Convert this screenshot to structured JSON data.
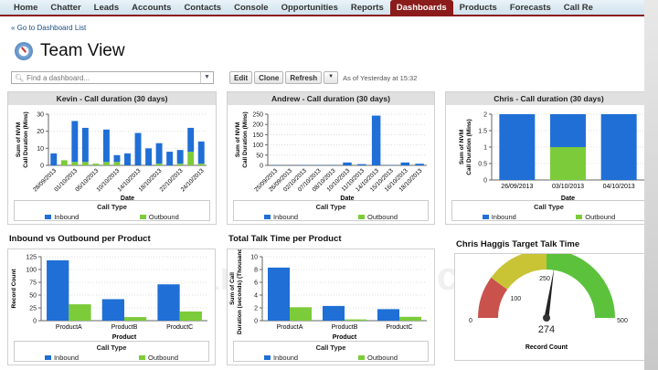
{
  "nav": {
    "tabs": [
      "Home",
      "Chatter",
      "Leads",
      "Accounts",
      "Contacts",
      "Console",
      "Opportunities",
      "Reports",
      "Dashboards",
      "Products",
      "Forecasts",
      "Call Re"
    ],
    "active": "Dashboards"
  },
  "back_link": "« Go to Dashboard List",
  "page_title": "Team View",
  "search": {
    "placeholder": "Find a dashboard..."
  },
  "toolbar": {
    "edit": "Edit",
    "clone": "Clone",
    "refresh": "Refresh",
    "as_of": "As of Yesterday at 15:32"
  },
  "colors": {
    "inbound": "#1f6fd6",
    "outbound": "#7ccb3a",
    "accent": "#8a1c1c"
  },
  "watermark": "SoftwareSuggest.com",
  "legend": {
    "title": "Call Type",
    "inbound": "Inbound",
    "outbound": "Outbound"
  },
  "chart_data": [
    {
      "id": "kevin",
      "type": "bar",
      "stacked": true,
      "title": "Kevin - Call duration (30 days)",
      "xlabel": "Date",
      "ylabel": "Sum of NVM Call Duration (Mins)",
      "ylim": [
        0,
        30
      ],
      "yticks": [
        0,
        10,
        20,
        30
      ],
      "categories": [
        "28/09/2013",
        "",
        "01/10/2013",
        "",
        "05/10/2013",
        "",
        "10/10/2013",
        "",
        "14/10/2013",
        "",
        "18/10/2013",
        "",
        "22/10/2013",
        "",
        "24/10/2013"
      ],
      "series": [
        {
          "name": "Inbound",
          "values": [
            7,
            0,
            24,
            20,
            0,
            19,
            4,
            7,
            19,
            10,
            12,
            8,
            8,
            14,
            13
          ]
        },
        {
          "name": "Outbound",
          "values": [
            0,
            3,
            2,
            2,
            1,
            2,
            2,
            0,
            0,
            0,
            1,
            0,
            1,
            8,
            1
          ]
        }
      ]
    },
    {
      "id": "andrew",
      "type": "bar",
      "stacked": true,
      "title": "Andrew - Call duration (30 days)",
      "xlabel": "Date",
      "ylabel": "Sum of NVM Call Duration (Mins)",
      "ylim": [
        0,
        250
      ],
      "yticks": [
        0,
        50,
        100,
        150,
        200,
        250
      ],
      "categories": [
        "25/09/2013",
        "26/09/2013",
        "02/10/2013",
        "07/10/2013",
        "08/10/2013",
        "10/10/2013",
        "11/10/2013",
        "14/10/2013",
        "15/10/2013",
        "16/10/2013",
        "18/10/2013"
      ],
      "series": [
        {
          "name": "Inbound",
          "values": [
            2,
            0.5,
            2,
            2,
            2,
            14,
            6,
            243,
            2,
            14,
            8
          ]
        },
        {
          "name": "Outbound",
          "values": [
            0,
            0,
            0,
            0,
            0,
            0,
            0,
            0,
            0,
            0,
            0
          ]
        }
      ]
    },
    {
      "id": "chris",
      "type": "bar",
      "stacked": true,
      "title": "Chris - Call duration (30 days)",
      "xlabel": "Date",
      "ylabel": "Sum of NVM Call Duration (Mins)",
      "ylim": [
        0,
        2
      ],
      "yticks": [
        0,
        0.5,
        1,
        1.5,
        2
      ],
      "categories": [
        "26/09/2013",
        "03/10/2013",
        "04/10/2013"
      ],
      "series": [
        {
          "name": "Inbound",
          "values": [
            2,
            1,
            2
          ]
        },
        {
          "name": "Outbound",
          "values": [
            0,
            1,
            0
          ]
        }
      ]
    },
    {
      "id": "records",
      "type": "bar",
      "stacked": false,
      "title": "Inbound vs Outbound per Product",
      "xlabel": "Product",
      "ylabel": "Record Count",
      "ylim": [
        0,
        125
      ],
      "yticks": [
        0,
        25,
        50,
        75,
        100,
        125
      ],
      "categories": [
        "ProductA",
        "ProductB",
        "ProductC"
      ],
      "series": [
        {
          "name": "Inbound",
          "values": [
            118,
            42,
            71
          ]
        },
        {
          "name": "Outbound",
          "values": [
            32,
            7,
            18
          ]
        }
      ]
    },
    {
      "id": "talk",
      "type": "bar",
      "stacked": false,
      "title": "Total Talk Time per Product",
      "xlabel": "Product",
      "ylabel": "Sum of Call Duration (seconds) (Thousands)",
      "ylim": [
        0,
        10
      ],
      "yticks": [
        0,
        2,
        4,
        6,
        8,
        10
      ],
      "categories": [
        "ProductA",
        "ProductB",
        "ProductC"
      ],
      "series": [
        {
          "name": "Inbound",
          "values": [
            8.3,
            2.3,
            1.8
          ]
        },
        {
          "name": "Outbound",
          "values": [
            2.1,
            0.2,
            0.6
          ]
        }
      ]
    },
    {
      "id": "gauge",
      "type": "gauge",
      "title": "Chris Haggis Target Talk Time",
      "label": "Record Count",
      "min": 0,
      "max": 500,
      "value": 274,
      "value_label": "274",
      "ranges": [
        {
          "to": 100,
          "color": "#c9524d"
        },
        {
          "to": 250,
          "color": "#c9c435"
        },
        {
          "to": 500,
          "color": "#5cc23c"
        }
      ],
      "tick_labels": [
        "0",
        "100",
        "250",
        "500"
      ]
    }
  ]
}
